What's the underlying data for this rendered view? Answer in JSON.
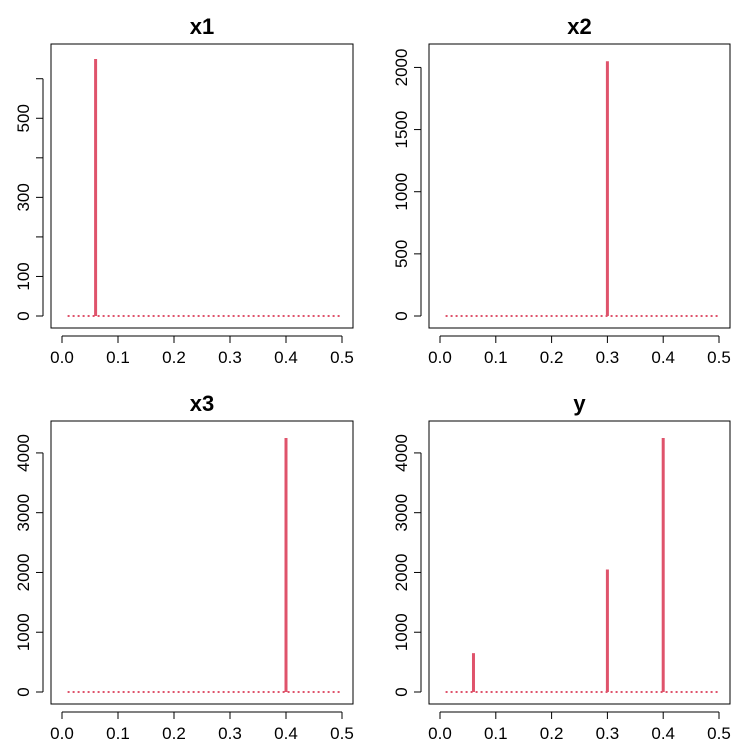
{
  "chart_data": [
    {
      "type": "spectrum",
      "title": "x1",
      "xlim": [
        0,
        0.5
      ],
      "ylim": [
        0,
        660
      ],
      "xticks": [
        0.0,
        0.1,
        0.2,
        0.3,
        0.4,
        0.5
      ],
      "xtick_labels": [
        "0.0",
        "0.1",
        "0.2",
        "0.3",
        "0.4",
        "0.5"
      ],
      "yticks": [
        0,
        100,
        200,
        300,
        400,
        500,
        600
      ],
      "ytick_labels": [
        "0",
        "100",
        "",
        "300",
        "",
        "500",
        ""
      ],
      "spikes": [
        {
          "x": 0.06,
          "y": 650
        }
      ],
      "baseline_color": "#DF536B",
      "spike_color": "#DF536B"
    },
    {
      "type": "spectrum",
      "title": "x2",
      "xlim": [
        0,
        0.5
      ],
      "ylim": [
        0,
        2100
      ],
      "xticks": [
        0.0,
        0.1,
        0.2,
        0.3,
        0.4,
        0.5
      ],
      "xtick_labels": [
        "0.0",
        "0.1",
        "0.2",
        "0.3",
        "0.4",
        "0.5"
      ],
      "yticks": [
        0,
        500,
        1000,
        1500,
        2000
      ],
      "ytick_labels": [
        "0",
        "500",
        "1000",
        "1500",
        "2000"
      ],
      "spikes": [
        {
          "x": 0.3,
          "y": 2050
        }
      ],
      "baseline_color": "#DF536B",
      "spike_color": "#DF536B"
    },
    {
      "type": "spectrum",
      "title": "x3",
      "xlim": [
        0,
        0.5
      ],
      "ylim": [
        0,
        4350
      ],
      "xticks": [
        0.0,
        0.1,
        0.2,
        0.3,
        0.4,
        0.5
      ],
      "xtick_labels": [
        "0.0",
        "0.1",
        "0.2",
        "0.3",
        "0.4",
        "0.5"
      ],
      "yticks": [
        0,
        1000,
        2000,
        3000,
        4000
      ],
      "ytick_labels": [
        "0",
        "1000",
        "2000",
        "3000",
        "4000"
      ],
      "spikes": [
        {
          "x": 0.4,
          "y": 4250
        }
      ],
      "baseline_color": "#DF536B",
      "spike_color": "#DF536B"
    },
    {
      "type": "spectrum",
      "title": "y",
      "xlim": [
        0,
        0.5
      ],
      "ylim": [
        0,
        4350
      ],
      "xticks": [
        0.0,
        0.1,
        0.2,
        0.3,
        0.4,
        0.5
      ],
      "xtick_labels": [
        "0.0",
        "0.1",
        "0.2",
        "0.3",
        "0.4",
        "0.5"
      ],
      "yticks": [
        0,
        1000,
        2000,
        3000,
        4000
      ],
      "ytick_labels": [
        "0",
        "1000",
        "2000",
        "3000",
        "4000"
      ],
      "spikes": [
        {
          "x": 0.06,
          "y": 650
        },
        {
          "x": 0.3,
          "y": 2050
        },
        {
          "x": 0.4,
          "y": 4250
        }
      ],
      "baseline_color": "#DF536B",
      "spike_color": "#DF536B"
    }
  ]
}
